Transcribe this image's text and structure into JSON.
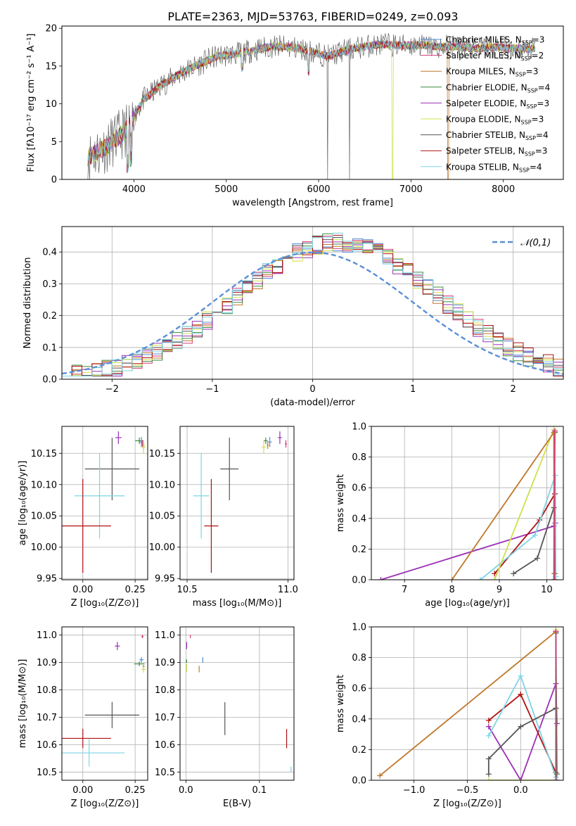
{
  "title": "PLATE=2363, MJD=53763, FIBERID=0249, z=0.093",
  "models": [
    {
      "name": "Chabrier MILES",
      "nssp": "3",
      "color": "#4e8fd6"
    },
    {
      "name": "Salpeter MILES",
      "nssp": "2",
      "color": "#d43c7a"
    },
    {
      "name": "Kroupa MILES",
      "nssp": "3",
      "color": "#c0782b"
    },
    {
      "name": "Chabrier ELODIE",
      "nssp": "4",
      "color": "#3f8a3f"
    },
    {
      "name": "Salpeter ELODIE",
      "nssp": "3",
      "color": "#9b30b5"
    },
    {
      "name": "Kroupa ELODIE",
      "nssp": "3",
      "color": "#cfe04a"
    },
    {
      "name": "Chabrier STELIB",
      "nssp": "4",
      "color": "#555555"
    },
    {
      "name": "Salpeter STELIB",
      "nssp": "3",
      "color": "#b01010"
    },
    {
      "name": "Kroupa STELIB",
      "nssp": "4",
      "color": "#7fd4e4"
    }
  ],
  "chart_data": [
    {
      "id": "spectrum",
      "type": "line",
      "xlabel": "wavelength [Angstrom, rest frame]",
      "ylabel": "Flux [fλ10⁻¹⁷ erg cm⁻² s⁻¹ A⁻¹]",
      "xlim": [
        3220,
        8650
      ],
      "ylim": [
        0,
        20.3
      ],
      "xticks": [
        4000,
        5000,
        6000,
        7000,
        8000
      ],
      "yticks": [
        0,
        5,
        10,
        15,
        20
      ],
      "legend": "right",
      "continuum": {
        "x": [
          3500,
          3700,
          3900,
          4100,
          4300,
          4500,
          4700,
          4900,
          5100,
          5300,
          5500,
          5700,
          5900,
          6100,
          6300,
          6500,
          6700,
          6900,
          7100,
          7300,
          7500,
          7700,
          7900,
          8100
        ],
        "y": [
          3.0,
          4.3,
          6.3,
          10.5,
          12.5,
          14.0,
          15.2,
          16.3,
          16.6,
          17.1,
          17.6,
          17.5,
          17.0,
          16.3,
          17.1,
          17.6,
          17.9,
          17.7,
          17.8,
          17.5,
          17.6,
          17.3,
          17.5,
          17.3
        ]
      }
    },
    {
      "id": "residuals",
      "type": "histogram",
      "xlabel": "(data-model)/error",
      "ylabel": "Normed distribution",
      "xlim": [
        -2.5,
        2.5
      ],
      "ylim": [
        0,
        0.48
      ],
      "xticks": [
        -2,
        -1,
        0,
        1,
        2
      ],
      "yticks": [
        0.0,
        0.1,
        0.2,
        0.3,
        0.4
      ],
      "reference_curve": {
        "label": "𝒩(0,1)",
        "mean": 0,
        "sigma": 1
      },
      "center_shift": 0.25,
      "bin_width": 0.1,
      "legend": "top-right"
    },
    {
      "id": "age_vs_Z",
      "type": "errorbar",
      "xlabel": "Z [log₁₀(Z/Z⊙)]",
      "ylabel": "age  [log₁₀(age/yr)]",
      "xlim": [
        -0.1,
        0.31
      ],
      "ylim": [
        9.948,
        10.193
      ],
      "xticks": [
        0.0,
        0.25
      ],
      "yticks": [
        9.95,
        10.0,
        10.05,
        10.1,
        10.15
      ],
      "points": [
        {
          "model": 6,
          "x": 0.14,
          "y": 10.125,
          "xerr": 0.13,
          "yerr": 0.05
        },
        {
          "model": 8,
          "x": 0.08,
          "y": 10.082,
          "xerr": 0.12,
          "yerr": 0.068
        },
        {
          "model": 7,
          "x": 0.0,
          "y": 10.034,
          "xerr": 0.135,
          "yerr": 0.075
        },
        {
          "model": 4,
          "x": 0.17,
          "y": 10.175,
          "xerr": 0.015,
          "yerr": 0.01
        },
        {
          "model": 3,
          "x": 0.27,
          "y": 10.17,
          "xerr": 0.02,
          "yerr": 0.005
        },
        {
          "model": 0,
          "x": 0.28,
          "y": 10.168,
          "xerr": 0.01,
          "yerr": 0.008
        },
        {
          "model": 1,
          "x": 0.285,
          "y": 10.165,
          "xerr": 0.005,
          "yerr": 0.006
        },
        {
          "model": 2,
          "x": 0.29,
          "y": 10.163,
          "xerr": 0.005,
          "yerr": 0.006
        },
        {
          "model": 5,
          "x": 0.29,
          "y": 10.16,
          "xerr": 0.01,
          "yerr": 0.01
        }
      ]
    },
    {
      "id": "age_vs_mass",
      "type": "errorbar",
      "xlabel": "mass [log₁₀(M/M⊙)]",
      "ylabel": "",
      "xlim": [
        10.465,
        11.03
      ],
      "ylim": [
        9.948,
        10.193
      ],
      "xticks": [
        10.5,
        11.0
      ],
      "yticks": [
        9.95,
        10.0,
        10.05,
        10.1,
        10.15
      ],
      "points": [
        {
          "model": 6,
          "x": 10.71,
          "y": 10.125,
          "xerr": 0.045,
          "yerr": 0.05
        },
        {
          "model": 8,
          "x": 10.57,
          "y": 10.082,
          "xerr": 0.04,
          "yerr": 0.068
        },
        {
          "model": 7,
          "x": 10.62,
          "y": 10.034,
          "xerr": 0.035,
          "yerr": 0.075
        },
        {
          "model": 4,
          "x": 10.96,
          "y": 10.175,
          "xerr": 0.01,
          "yerr": 0.01
        },
        {
          "model": 3,
          "x": 10.89,
          "y": 10.17,
          "xerr": 0.01,
          "yerr": 0.005
        },
        {
          "model": 0,
          "x": 10.91,
          "y": 10.168,
          "xerr": 0.01,
          "yerr": 0.008
        },
        {
          "model": 1,
          "x": 10.99,
          "y": 10.165,
          "xerr": 0.005,
          "yerr": 0.006
        },
        {
          "model": 2,
          "x": 10.9,
          "y": 10.163,
          "xerr": 0.005,
          "yerr": 0.006
        },
        {
          "model": 5,
          "x": 10.88,
          "y": 10.16,
          "xerr": 0.01,
          "yerr": 0.01
        }
      ]
    },
    {
      "id": "weight_vs_age",
      "type": "line",
      "xlabel": "age  [log₁₀(age/yr)]",
      "ylabel": "mass weight",
      "xlim": [
        6.3,
        10.35
      ],
      "ylim": [
        0,
        1
      ],
      "xticks": [
        7,
        8,
        9,
        10
      ],
      "yticks": [
        0.0,
        0.2,
        0.4,
        0.6,
        0.8,
        1.0
      ],
      "series": [
        {
          "model": 4,
          "x": [
            6.5,
            10.15,
            10.18
          ],
          "y": [
            0.0,
            0.35,
            0.37
          ]
        },
        {
          "model": 7,
          "x": [
            8.9,
            9.85,
            10.17,
            10.18
          ],
          "y": [
            0.04,
            0.39,
            0.56,
            0.0
          ]
        },
        {
          "model": 8,
          "x": [
            8.6,
            9.75,
            10.18,
            10.19
          ],
          "y": [
            0.0,
            0.29,
            0.68,
            0.02
          ]
        },
        {
          "model": 6,
          "x": [
            9.3,
            9.8,
            10.15,
            10.17
          ],
          "y": [
            0.04,
            0.14,
            0.47,
            0.96
          ]
        },
        {
          "model": 5,
          "x": [
            8.9,
            10.15,
            10.16
          ],
          "y": [
            0.0,
            0.98,
            0.0
          ]
        },
        {
          "model": 3,
          "x": [
            10.15,
            10.16,
            10.17
          ],
          "y": [
            0.0,
            0.96,
            0.04
          ]
        },
        {
          "model": 2,
          "x": [
            8.0,
            10.15,
            10.16
          ],
          "y": [
            0.0,
            0.96,
            0.04
          ]
        },
        {
          "model": 0,
          "x": [
            10.16,
            10.17
          ],
          "y": [
            0.0,
            0.97
          ]
        },
        {
          "model": 1,
          "x": [
            10.16,
            10.17
          ],
          "y": [
            0.0,
            0.97
          ]
        }
      ]
    },
    {
      "id": "mass_vs_Z",
      "type": "errorbar",
      "xlabel": "Z [log₁₀(Z/Z⊙)]",
      "ylabel": "mass [log₁₀(M/M⊙)]",
      "xlim": [
        -0.1,
        0.31
      ],
      "ylim": [
        10.47,
        11.03
      ],
      "xticks": [
        0.0,
        0.25
      ],
      "yticks": [
        10.5,
        10.6,
        10.7,
        10.8,
        10.9,
        11.0
      ],
      "points": [
        {
          "model": 6,
          "x": 0.14,
          "y": 10.708,
          "xerr": 0.13,
          "yerr": 0.048
        },
        {
          "model": 8,
          "x": 0.03,
          "y": 10.57,
          "xerr": 0.17,
          "yerr": 0.05
        },
        {
          "model": 7,
          "x": 0.0,
          "y": 10.623,
          "xerr": 0.135,
          "yerr": 0.035
        },
        {
          "model": 4,
          "x": 0.165,
          "y": 10.96,
          "xerr": 0.012,
          "yerr": 0.015
        },
        {
          "model": 3,
          "x": 0.27,
          "y": 10.895,
          "xerr": 0.025,
          "yerr": 0.008
        },
        {
          "model": 0,
          "x": 0.28,
          "y": 10.91,
          "xerr": 0.01,
          "yerr": 0.01
        },
        {
          "model": 1,
          "x": 0.285,
          "y": 10.995,
          "xerr": 0.005,
          "yerr": 0.006
        },
        {
          "model": 2,
          "x": 0.29,
          "y": 10.885,
          "xerr": 0.005,
          "yerr": 0.006
        },
        {
          "model": 5,
          "x": 0.29,
          "y": 10.875,
          "xerr": 0.01,
          "yerr": 0.012
        }
      ]
    },
    {
      "id": "mass_vs_ebv",
      "type": "errorbar",
      "xlabel": "E(B-V)",
      "ylabel": "",
      "xlim": [
        -0.008,
        0.147
      ],
      "ylim": [
        10.47,
        11.03
      ],
      "xticks": [
        0.0,
        0.1
      ],
      "yticks": [
        10.5,
        10.6,
        10.7,
        10.8,
        10.9,
        11.0
      ],
      "points": [
        {
          "model": 6,
          "x": 0.053,
          "y": 10.695,
          "xerr": 0,
          "yerr": 0.06
        },
        {
          "model": 7,
          "x": 0.137,
          "y": 10.622,
          "xerr": 0,
          "yerr": 0.035
        },
        {
          "model": 8,
          "x": 0.143,
          "y": 10.51,
          "xerr": 0,
          "yerr": 0.01
        },
        {
          "model": 4,
          "x": 0.001,
          "y": 10.962,
          "xerr": 0,
          "yerr": 0.013
        },
        {
          "model": 5,
          "x": 0.001,
          "y": 10.88,
          "xerr": 0,
          "yerr": 0.015
        },
        {
          "model": 1,
          "x": 0.006,
          "y": 10.995,
          "xerr": 0,
          "yerr": 0.006
        },
        {
          "model": 0,
          "x": 0.023,
          "y": 10.91,
          "xerr": 0,
          "yerr": 0.01
        },
        {
          "model": 2,
          "x": 0.018,
          "y": 10.876,
          "xerr": 0,
          "yerr": 0.012
        },
        {
          "model": 3,
          "x": 0.001,
          "y": 10.905,
          "xerr": 0,
          "yerr": 0.006
        }
      ]
    },
    {
      "id": "weight_vs_Z",
      "type": "line",
      "xlabel": "Z [log₁₀(Z/Z⊙)]",
      "ylabel": "mass weight",
      "xlim": [
        -1.4,
        0.4
      ],
      "ylim": [
        0,
        1
      ],
      "xticks": [
        -1.0,
        -0.5,
        0.0
      ],
      "yticks": [
        0.0,
        0.2,
        0.4,
        0.6,
        0.8,
        1.0
      ],
      "series": [
        {
          "model": 4,
          "x": [
            -0.3,
            0.0,
            0.33,
            0.34
          ],
          "y": [
            0.35,
            0.0,
            0.63,
            0.37
          ]
        },
        {
          "model": 7,
          "x": [
            -0.3,
            0.0,
            0.33,
            0.34
          ],
          "y": [
            0.39,
            0.56,
            0.05,
            0.0
          ]
        },
        {
          "model": 8,
          "x": [
            -0.3,
            0.0,
            0.33,
            0.34
          ],
          "y": [
            0.29,
            0.68,
            0.02,
            0.0
          ]
        },
        {
          "model": 6,
          "x": [
            -0.3,
            -0.3,
            0.0,
            0.33,
            0.33
          ],
          "y": [
            0.04,
            0.14,
            0.35,
            0.47,
            0.96
          ]
        },
        {
          "model": 5,
          "x": [
            -0.3,
            0.33,
            0.33
          ],
          "y": [
            0.0,
            0.0,
            0.98
          ]
        },
        {
          "model": 3,
          "x": [
            0.33,
            0.33,
            0.34
          ],
          "y": [
            0.0,
            0.96,
            0.04
          ]
        },
        {
          "model": 2,
          "x": [
            -1.32,
            0.33
          ],
          "y": [
            0.03,
            0.97
          ]
        },
        {
          "model": 0,
          "x": [
            0.33,
            0.33
          ],
          "y": [
            0.0,
            0.97
          ]
        },
        {
          "model": 1,
          "x": [
            0.33,
            0.33
          ],
          "y": [
            0.0,
            0.97
          ]
        }
      ]
    }
  ]
}
